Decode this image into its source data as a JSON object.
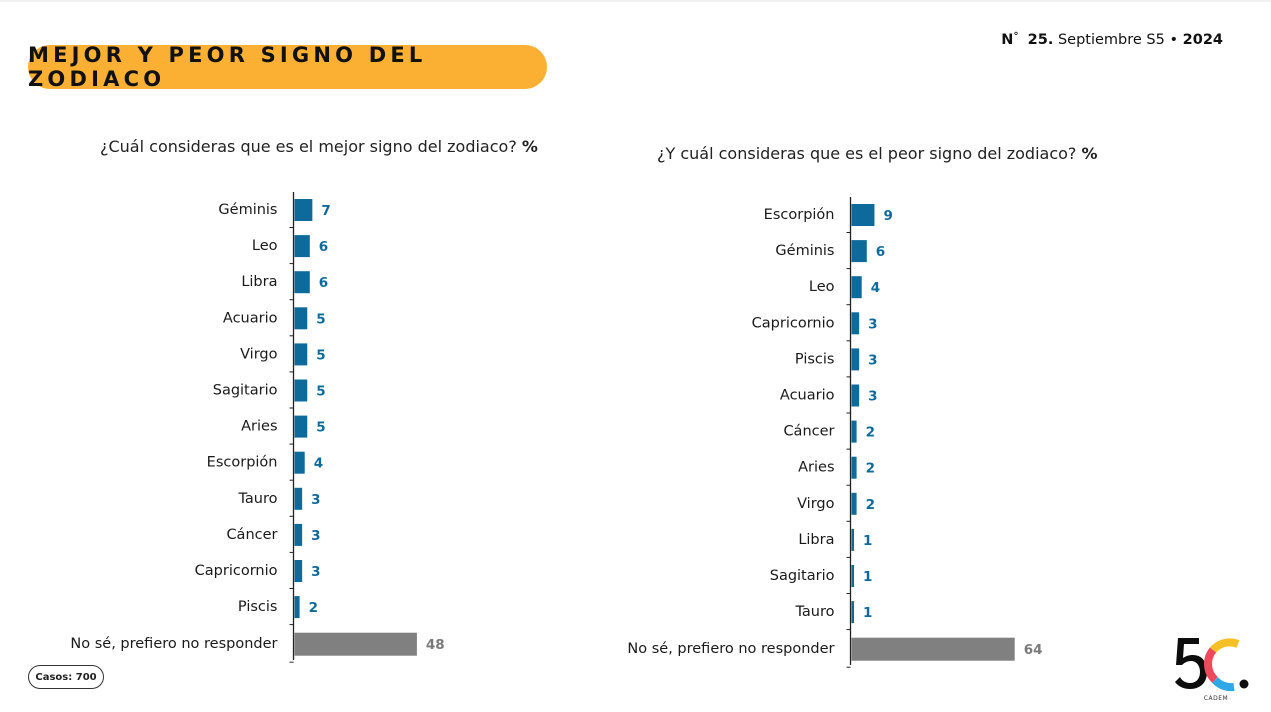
{
  "title": "MEJOR Y PEOR SIGNO DEL ZODIACO",
  "edition": {
    "prefix": "N",
    "number": "25.",
    "period": "Septiembre S5",
    "separator": "•",
    "year": "2024"
  },
  "sample": "Casos: 700",
  "logo": {
    "mark": "5C",
    "name": "CADEM"
  },
  "colors": {
    "bar": "#0f6a9c",
    "bar_nr": "#808080",
    "label_nr": "#7a7a7a",
    "accent": "#fbb034"
  },
  "chart_data": [
    {
      "type": "bar",
      "orientation": "horizontal",
      "question": "¿Cuál consideras que es el mejor signo del zodiaco?",
      "unit": "%",
      "categories": [
        "Géminis",
        "Leo",
        "Libra",
        "Acuario",
        "Virgo",
        "Sagitario",
        "Aries",
        "Escorpión",
        "Tauro",
        "Cáncer",
        "Capricornio",
        "Piscis",
        "No sé, prefiero no responder"
      ],
      "values": [
        7,
        6,
        6,
        5,
        5,
        5,
        5,
        4,
        3,
        3,
        3,
        2,
        48
      ]
    },
    {
      "type": "bar",
      "orientation": "horizontal",
      "question": "¿Y cuál consideras que es el peor signo del zodiaco?",
      "unit": "%",
      "categories": [
        "Escorpión",
        "Géminis",
        "Leo",
        "Capricornio",
        "Piscis",
        "Acuario",
        "Cáncer",
        "Aries",
        "Virgo",
        "Libra",
        "Sagitario",
        "Tauro",
        "No sé, prefiero no responder"
      ],
      "values": [
        9,
        6,
        4,
        3,
        3,
        3,
        2,
        2,
        2,
        1,
        1,
        1,
        64
      ]
    }
  ]
}
